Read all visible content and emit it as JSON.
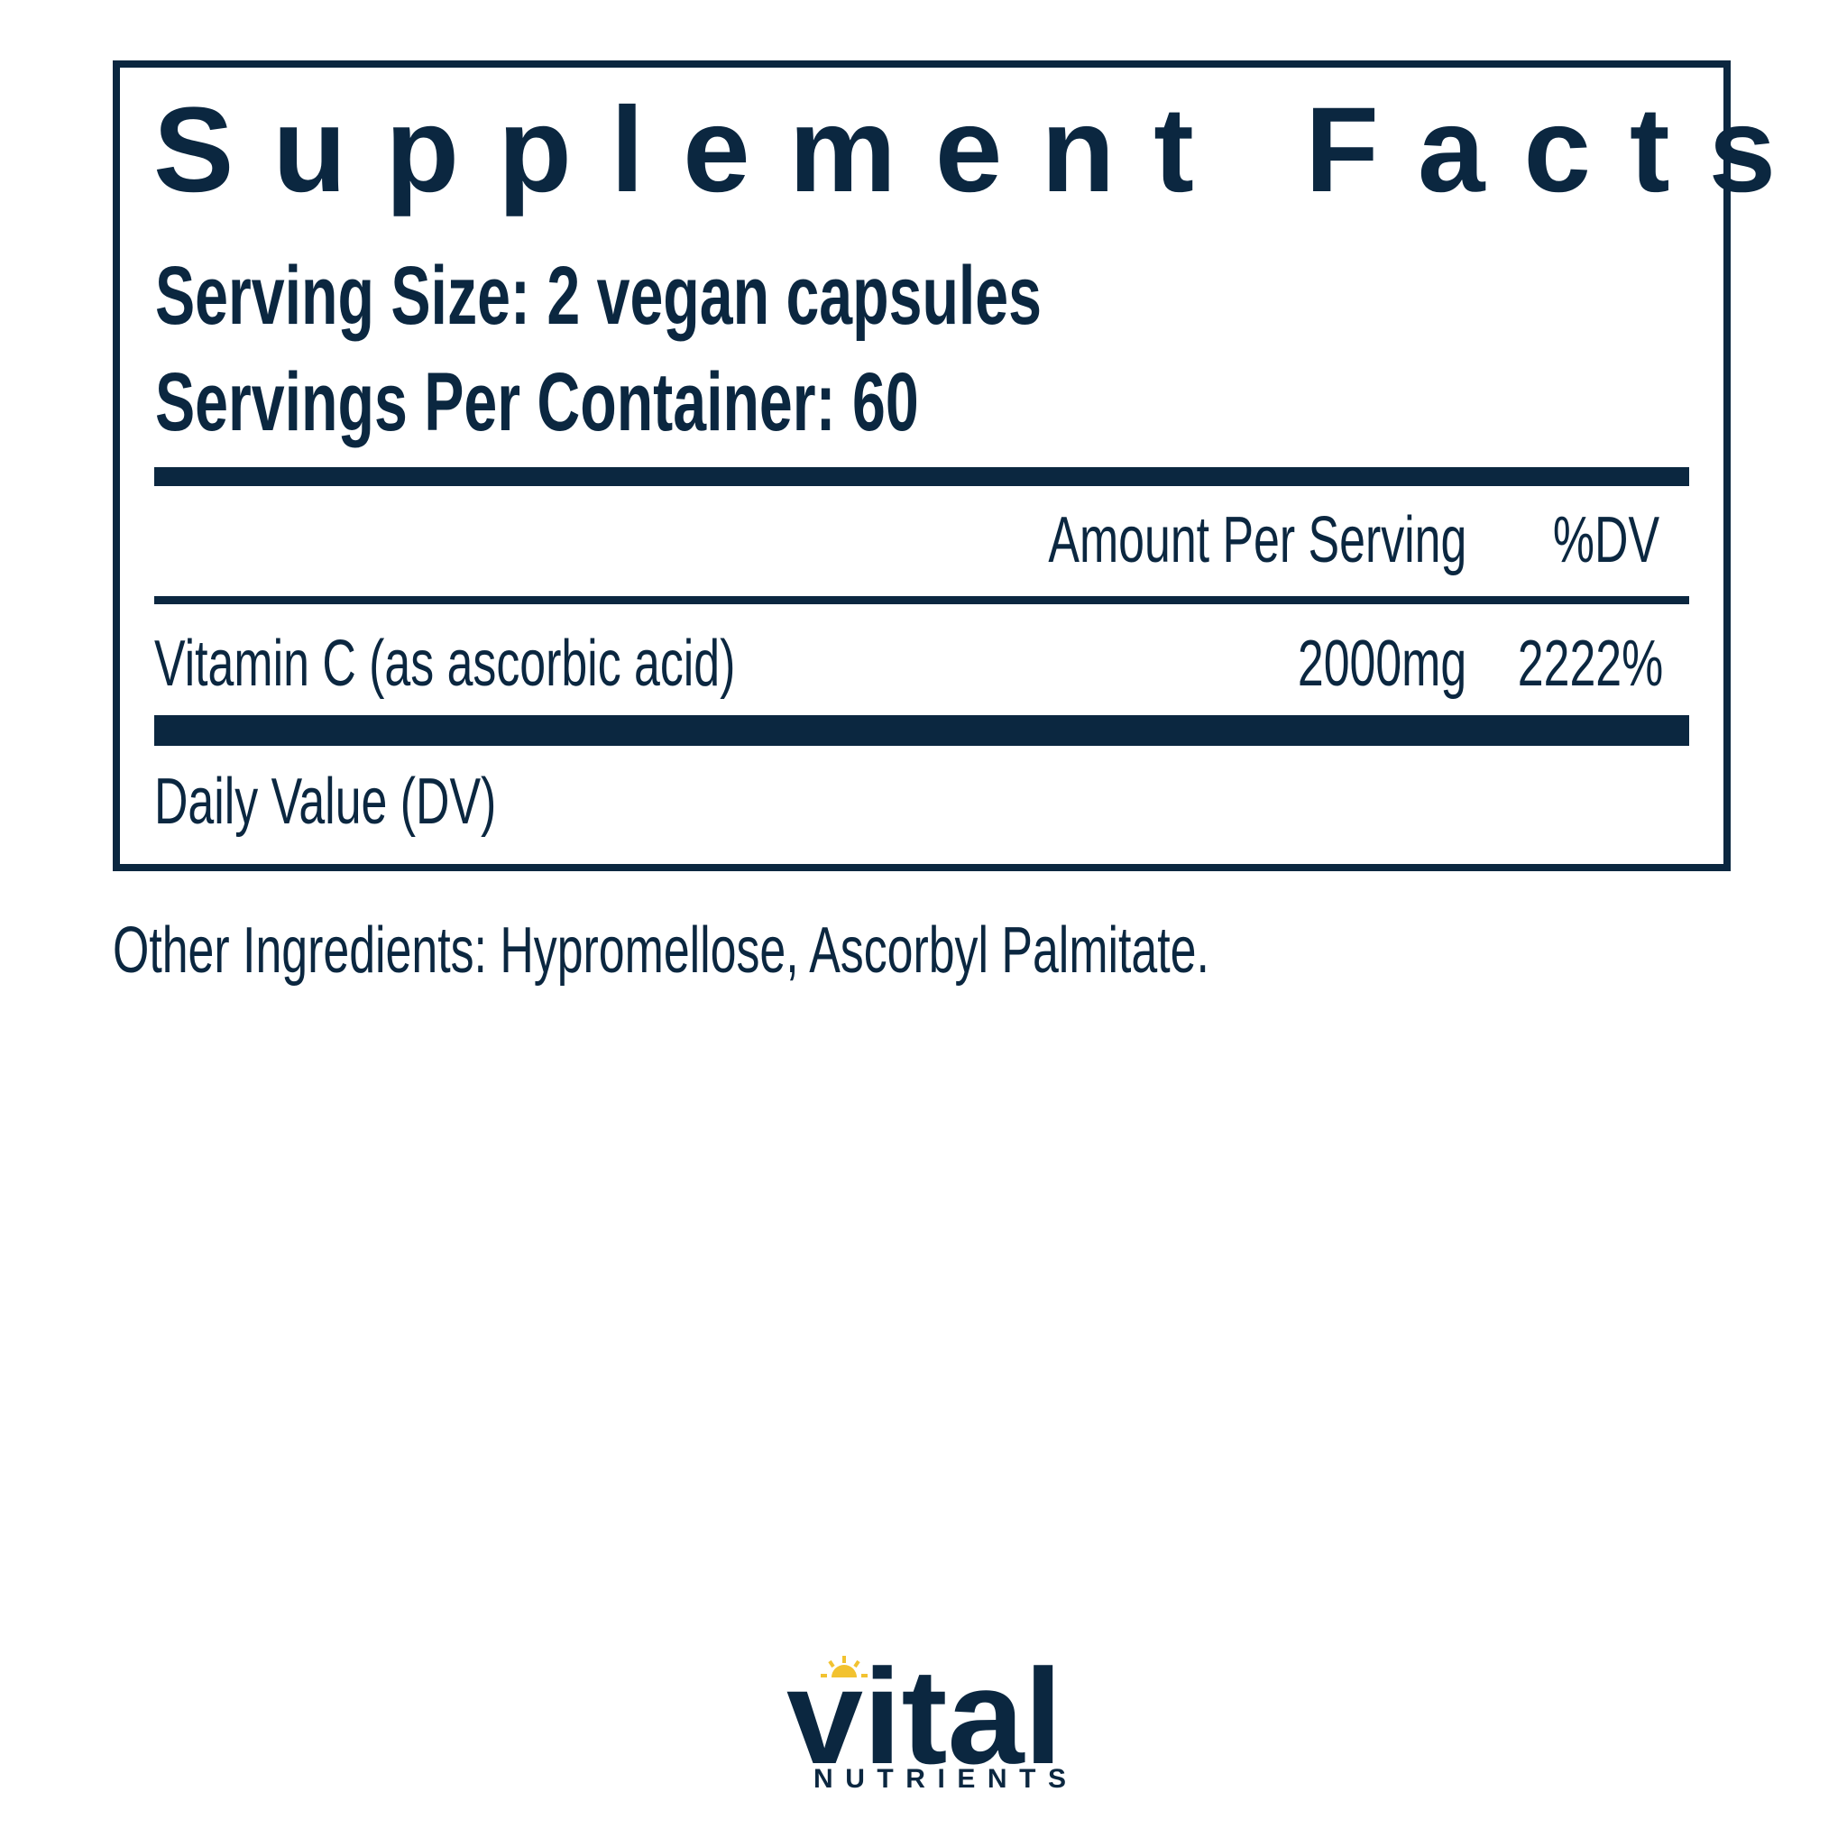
{
  "title": "Supplement Facts",
  "serving_size": "Serving Size: 2 vegan capsules",
  "servings_per_container": "Servings Per Container: 60",
  "columns": {
    "amount": "Amount Per Serving",
    "dv": "%DV"
  },
  "ingredients": [
    {
      "name": "Vitamin C (as ascorbic acid)",
      "amount": "2000mg",
      "dv": "2222%"
    }
  ],
  "footnote": "Daily Value (DV)",
  "other_ingredients": "Other Ingredients: Hypromellose, Ascorbyl Palmitate.",
  "brand": {
    "name": "vital",
    "sub": "NUTRIENTS",
    "primary_color": "#0b2740",
    "sun_color": "#f2c230"
  }
}
